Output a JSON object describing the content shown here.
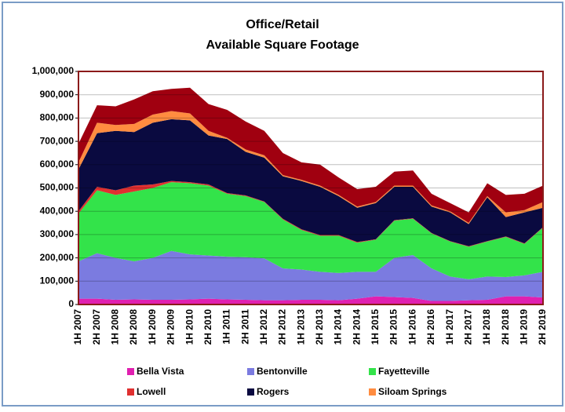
{
  "chart_data": {
    "type": "stacked_area",
    "title": "Office/Retail",
    "subtitle": "Available Square Footage",
    "categories": [
      "1H 2007",
      "2H 2007",
      "1H 2008",
      "2H 2008",
      "1H 2009",
      "2H 2009",
      "1H 2010",
      "2H 2010",
      "1H 2011",
      "2H 2011",
      "1H 2012",
      "2H 2012",
      "1H 2013",
      "2H 2013",
      "1H 2014",
      "2H 2014",
      "1H 2015",
      "2H 2015",
      "1H 2016",
      "2H 2016",
      "1H 2017",
      "2H 2017",
      "1H 2018",
      "2H 2018",
      "1H 2019",
      "2H 2019"
    ],
    "series": [
      {
        "name": "Bella Vista",
        "color": "#e020b0",
        "values": [
          25000,
          25000,
          20000,
          22000,
          20000,
          20000,
          22000,
          25000,
          22000,
          20000,
          18000,
          18000,
          20000,
          20000,
          18000,
          25000,
          35000,
          32000,
          28000,
          15000,
          15000,
          18000,
          20000,
          35000,
          35000,
          30000
        ]
      },
      {
        "name": "Bentonville",
        "color": "#7b7be0",
        "values": [
          160000,
          195000,
          180000,
          163000,
          180000,
          210000,
          193000,
          185000,
          183000,
          183000,
          180000,
          137000,
          130000,
          120000,
          117000,
          115000,
          105000,
          168000,
          184000,
          140000,
          105000,
          90000,
          100000,
          83000,
          90000,
          110000
        ]
      },
      {
        "name": "Fayetteville",
        "color": "#33e34a",
        "values": [
          205000,
          270000,
          270000,
          300000,
          300000,
          295000,
          305000,
          300000,
          270000,
          262000,
          242000,
          210000,
          170000,
          155000,
          160000,
          125000,
          138000,
          160000,
          156000,
          150000,
          150000,
          140000,
          150000,
          172000,
          135000,
          190000
        ]
      },
      {
        "name": "Lowell",
        "color": "#e03030",
        "values": [
          10000,
          15000,
          20000,
          25000,
          15000,
          5000,
          5000,
          5000,
          3000,
          3000,
          2000,
          3000,
          3000,
          3000,
          3000,
          3000,
          2000,
          2000,
          2000,
          2000,
          2000,
          2000,
          2000,
          2000,
          2000,
          2000
        ]
      },
      {
        "name": "Rogers",
        "color": "#0a0a40",
        "values": [
          180000,
          230000,
          255000,
          230000,
          265000,
          265000,
          265000,
          210000,
          232000,
          187000,
          188000,
          182000,
          207000,
          207000,
          167000,
          147000,
          155000,
          143000,
          135000,
          113000,
          123000,
          95000,
          188000,
          83000,
          133000,
          83000
        ]
      },
      {
        "name": "Siloam Springs",
        "color": "#ff8c40",
        "values": [
          30000,
          45000,
          25000,
          35000,
          35000,
          35000,
          30000,
          20000,
          5000,
          10000,
          10000,
          5000,
          5000,
          5000,
          5000,
          5000,
          5000,
          5000,
          5000,
          5000,
          5000,
          5000,
          5000,
          20000,
          10000,
          25000
        ]
      },
      {
        "color": "#a00010",
        "values": [
          80000,
          75000,
          80000,
          105000,
          100000,
          95000,
          110000,
          115000,
          120000,
          120000,
          105000,
          95000,
          75000,
          90000,
          75000,
          75000,
          65000,
          60000,
          65000,
          50000,
          35000,
          45000,
          55000,
          75000,
          70000,
          70000
        ]
      }
    ],
    "ylim": [
      0,
      1000000
    ],
    "yticks": [
      0,
      {
        "value": 100000,
        "label": "100,000"
      },
      {
        "value": 200000,
        "label": "200,000"
      },
      {
        "value": 300000,
        "label": "300,000"
      },
      {
        "value": 400000,
        "label": "400,000"
      },
      {
        "value": 500000,
        "label": "500,000"
      },
      {
        "value": 600000,
        "label": "600,000"
      },
      {
        "value": 700000,
        "label": "700,000"
      },
      {
        "value": 800000,
        "label": "800,000"
      },
      {
        "value": 900000,
        "label": "900,000"
      },
      {
        "value": 1000000,
        "label": "1,000,000"
      }
    ],
    "grid": true
  }
}
